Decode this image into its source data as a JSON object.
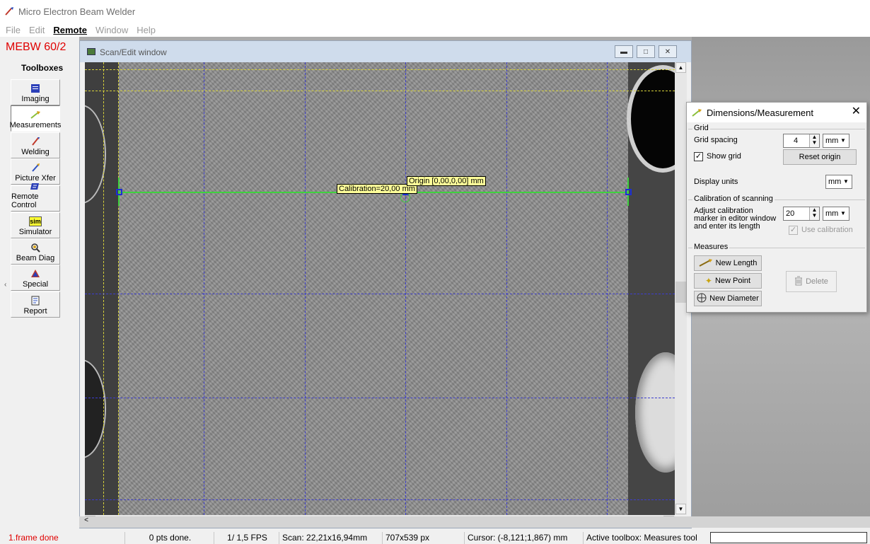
{
  "app": {
    "title": "Micro Electron Beam Welder"
  },
  "menu": [
    "File",
    "Edit",
    "Remote",
    "Window",
    "Help"
  ],
  "menu_active": "Remote",
  "toolbox": {
    "brand": "MEBW 60/2",
    "title": "Toolboxes",
    "items": [
      {
        "label": "Imaging",
        "icon": "imaging-icon"
      },
      {
        "label": "Measurements",
        "icon": "measurements-icon",
        "selected": true
      },
      {
        "label": "Welding",
        "icon": "welding-icon"
      },
      {
        "label": "Picture Xfer",
        "icon": "picture-transfer-icon"
      },
      {
        "label": "Remote Control",
        "icon": "remote-control-icon"
      },
      {
        "label": "Simulator",
        "icon": "simulator-icon",
        "badge": "sim"
      },
      {
        "label": "Beam Diag",
        "icon": "beam-diag-icon"
      },
      {
        "label": "Special",
        "icon": "special-icon"
      },
      {
        "label": "Report",
        "icon": "report-icon"
      }
    ]
  },
  "scan_window": {
    "title": "Scan/Edit window",
    "calibration_label": "Calibration=20,00 mm",
    "origin_label": "Origin [0,00,0,00] mm"
  },
  "dialog": {
    "title": "Dimensions/Measurement",
    "grid": {
      "legend": "Grid",
      "spacing_label": "Grid spacing",
      "spacing_value": "4",
      "spacing_unit": "mm",
      "show_grid_label": "Show grid",
      "show_grid_checked": true,
      "reset_origin_label": "Reset origin",
      "display_units_label": "Display units",
      "display_units_value": "mm"
    },
    "calibration": {
      "legend": "Calibration of scanning",
      "instruction_1": "Adjust calibration",
      "instruction_2": "marker in editor window",
      "instruction_3": "and enter its length",
      "length_value": "20",
      "length_unit": "mm",
      "use_calibration_label": "Use calibration",
      "use_calibration_checked": true
    },
    "measures": {
      "legend": "Measures",
      "new_length_label": "New Length",
      "new_point_label": "New Point",
      "new_diameter_label": "New Diameter",
      "delete_label": "Delete"
    }
  },
  "status": {
    "message": "1.frame done",
    "points": "0 pts done.",
    "fps": "1/ 1,5 FPS",
    "scan": "Scan: 22,21x16,94mm",
    "pixels": "707x539 px",
    "cursor": "Cursor: (-8,121;1,867) mm",
    "active_toolbox": "Active toolbox: Measures tool"
  }
}
